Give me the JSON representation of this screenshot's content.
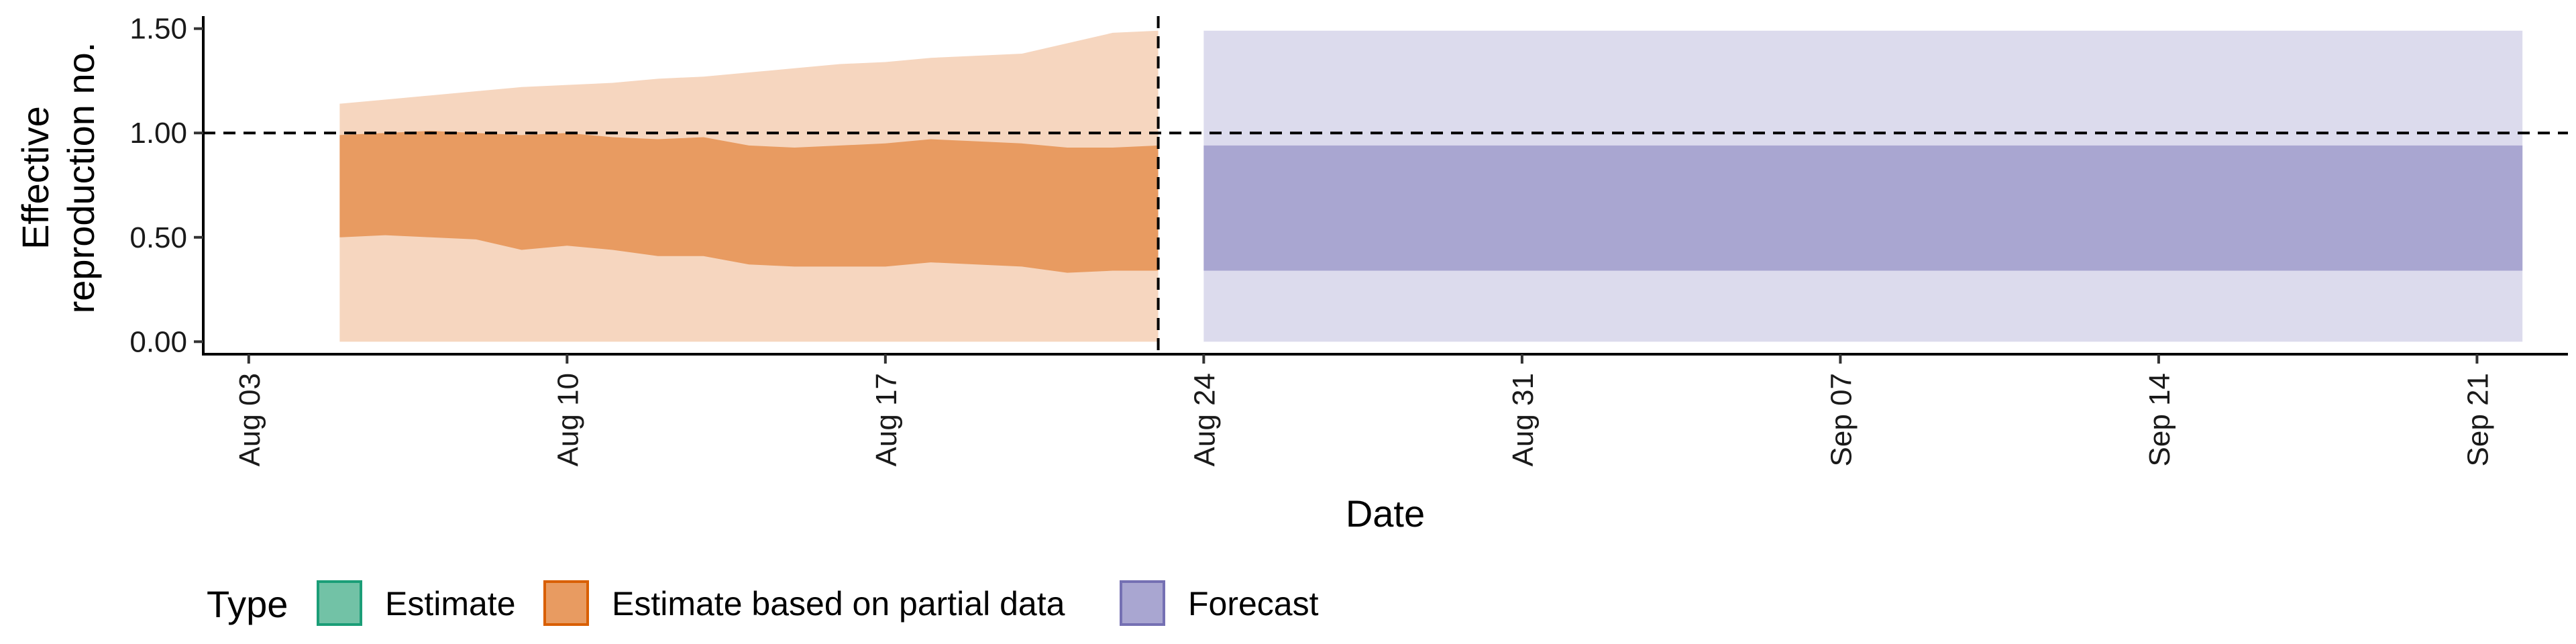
{
  "chart_data": {
    "type": "area",
    "xlabel": "Date",
    "ylabel_lines": [
      "Effective",
      "reproduction no."
    ],
    "x_ticks": [
      {
        "date": "2020-08-03",
        "label": "Aug 03"
      },
      {
        "date": "2020-08-10",
        "label": "Aug 10"
      },
      {
        "date": "2020-08-17",
        "label": "Aug 17"
      },
      {
        "date": "2020-08-24",
        "label": "Aug 24"
      },
      {
        "date": "2020-08-31",
        "label": "Aug 31"
      },
      {
        "date": "2020-09-07",
        "label": "Sep 07"
      },
      {
        "date": "2020-09-14",
        "label": "Sep 14"
      },
      {
        "date": "2020-09-21",
        "label": "Sep 21"
      }
    ],
    "xlim": [
      "2020-08-02",
      "2020-09-23"
    ],
    "y_ticks": [
      {
        "value": 0.0,
        "label": "0.00"
      },
      {
        "value": 0.5,
        "label": "0.50"
      },
      {
        "value": 1.0,
        "label": "1.00"
      },
      {
        "value": 1.5,
        "label": "1.50"
      }
    ],
    "ylim": [
      -0.06,
      1.56
    ],
    "reference_hline": 1.0,
    "reference_vline": "2020-08-23",
    "legend": {
      "title": "Type",
      "position": "bottom-left",
      "entries": [
        {
          "label": "Estimate",
          "fill": "#72c2a6",
          "stroke": "#1b9e77"
        },
        {
          "label": "Estimate based on partial data",
          "fill": "#e89b61",
          "stroke": "#d95f02"
        },
        {
          "label": "Forecast",
          "fill": "#a9a6d1",
          "stroke": "#7570b3"
        }
      ]
    },
    "series": [
      {
        "type_label": "Estimate based on partial data",
        "outer_color": "#f6d6bf",
        "inner_color": "#e89b61",
        "x": [
          "2020-08-05",
          "2020-08-06",
          "2020-08-07",
          "2020-08-08",
          "2020-08-09",
          "2020-08-10",
          "2020-08-11",
          "2020-08-12",
          "2020-08-13",
          "2020-08-14",
          "2020-08-15",
          "2020-08-16",
          "2020-08-17",
          "2020-08-18",
          "2020-08-19",
          "2020-08-20",
          "2020-08-21",
          "2020-08-22",
          "2020-08-23"
        ],
        "outer_lower": [
          0,
          0,
          0,
          0,
          0,
          0,
          0,
          0,
          0,
          0,
          0,
          0,
          0,
          0,
          0,
          0,
          0,
          0,
          0
        ],
        "outer_upper": [
          1.14,
          1.16,
          1.18,
          1.2,
          1.22,
          1.23,
          1.24,
          1.26,
          1.27,
          1.29,
          1.31,
          1.33,
          1.34,
          1.36,
          1.37,
          1.38,
          1.43,
          1.48,
          1.49
        ],
        "inner_lower": [
          0.5,
          0.51,
          0.5,
          0.49,
          0.44,
          0.46,
          0.44,
          0.41,
          0.41,
          0.37,
          0.36,
          0.36,
          0.36,
          0.38,
          0.37,
          0.36,
          0.33,
          0.34,
          0.34
        ],
        "inner_upper": [
          0.99,
          1.0,
          1.01,
          1.0,
          0.99,
          1.0,
          0.98,
          0.97,
          0.98,
          0.94,
          0.93,
          0.94,
          0.95,
          0.97,
          0.96,
          0.95,
          0.93,
          0.93,
          0.94
        ]
      },
      {
        "type_label": "Forecast",
        "outer_color": "#dcdbed",
        "inner_color": "#a9a6d1",
        "x": [
          "2020-08-24",
          "2020-09-22"
        ],
        "outer_lower": [
          0,
          0
        ],
        "outer_upper": [
          1.49,
          1.49
        ],
        "inner_lower": [
          0.34,
          0.34
        ],
        "inner_upper": [
          0.94,
          0.94
        ]
      }
    ]
  }
}
